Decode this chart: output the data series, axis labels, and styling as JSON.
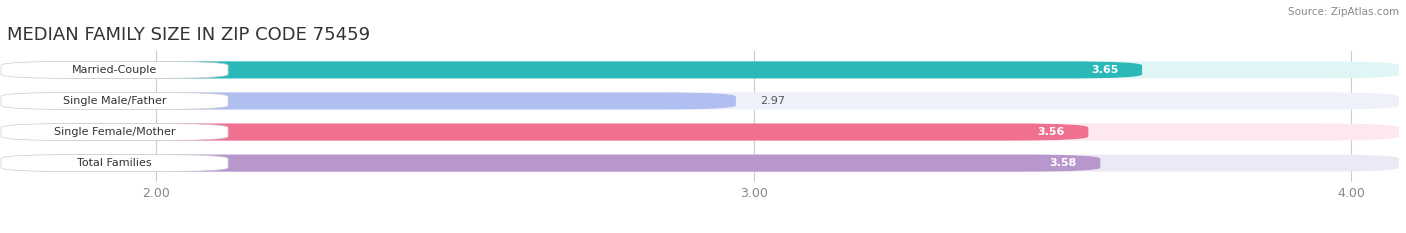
{
  "title": "MEDIAN FAMILY SIZE IN ZIP CODE 75459",
  "source": "Source: ZipAtlas.com",
  "categories": [
    "Married-Couple",
    "Single Male/Father",
    "Single Female/Mother",
    "Total Families"
  ],
  "values": [
    3.65,
    2.97,
    3.56,
    3.58
  ],
  "bar_colors": [
    "#2ab8b8",
    "#b0bef0",
    "#f07090",
    "#b898cc"
  ],
  "bar_bg_colors": [
    "#e0f5f5",
    "#eef0fa",
    "#fde8ef",
    "#ede8f5"
  ],
  "x_min": 1.75,
  "x_max": 4.08,
  "x_ticks": [
    2.0,
    3.0,
    4.0
  ],
  "x_tick_labels": [
    "2.00",
    "3.00",
    "4.00"
  ],
  "bar_height": 0.55,
  "title_fontsize": 13,
  "label_fontsize": 8,
  "value_fontsize": 8,
  "tick_fontsize": 9,
  "background_color": "#ffffff",
  "label_box_color": "#ffffff",
  "grid_color": "#cccccc"
}
